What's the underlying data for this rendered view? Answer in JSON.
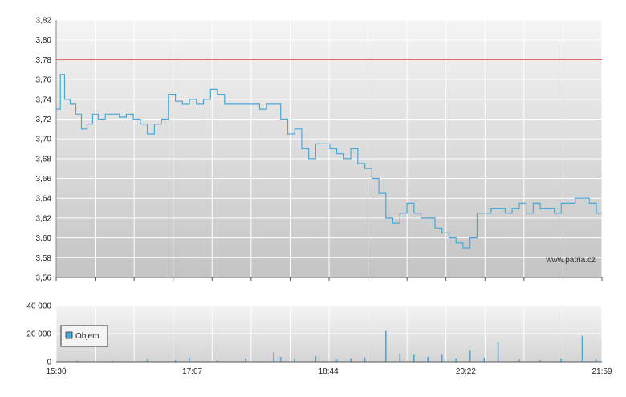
{
  "chart_data": [
    {
      "type": "line",
      "x_ticks": [
        "15:30",
        "17:07",
        "18:44",
        "20:22",
        "21:59"
      ],
      "y_ticks": [
        "3,82",
        "3,80",
        "3,78",
        "3,76",
        "3,74",
        "3,72",
        "3,70",
        "3,68",
        "3,66",
        "3,64",
        "3,62",
        "3,60",
        "3,58",
        "3,56"
      ],
      "ylim": [
        3.56,
        3.82
      ],
      "grid": true,
      "watermark": "www.patria.cz",
      "reference_line": {
        "value": 3.78,
        "color": "#e05050"
      },
      "line_color": "#4aa8d8",
      "series": [
        {
          "x": [
            "15:30",
            "15:33",
            "15:36",
            "15:40",
            "15:44",
            "15:48",
            "15:52",
            "15:56",
            "16:00",
            "16:05",
            "16:10",
            "16:15",
            "16:20",
            "16:25",
            "16:30",
            "16:35",
            "16:40",
            "16:45",
            "16:50",
            "16:55",
            "17:00",
            "17:05",
            "17:10",
            "17:15",
            "17:20",
            "17:25",
            "17:30",
            "17:35",
            "17:40",
            "17:45",
            "17:50",
            "17:55",
            "18:00",
            "18:05",
            "18:10",
            "18:15",
            "18:20",
            "18:25",
            "18:30",
            "18:35",
            "18:40",
            "18:45",
            "18:50",
            "18:55",
            "19:00",
            "19:05",
            "19:10",
            "19:15",
            "19:20",
            "19:25",
            "19:30",
            "19:35",
            "19:40",
            "19:45",
            "19:50",
            "19:55",
            "20:00",
            "20:05",
            "20:10",
            "20:15",
            "20:20",
            "20:25",
            "20:30",
            "20:35",
            "20:40",
            "20:45",
            "20:50",
            "20:55",
            "21:00",
            "21:05",
            "21:10",
            "21:15",
            "21:20",
            "21:25",
            "21:30",
            "21:35",
            "21:40",
            "21:45",
            "21:50",
            "21:55",
            "21:59"
          ],
          "y": [
            3.73,
            3.765,
            3.74,
            3.735,
            3.725,
            3.71,
            3.715,
            3.725,
            3.72,
            3.725,
            3.725,
            3.722,
            3.725,
            3.72,
            3.715,
            3.705,
            3.715,
            3.72,
            3.745,
            3.738,
            3.735,
            3.74,
            3.735,
            3.74,
            3.75,
            3.745,
            3.735,
            3.735,
            3.735,
            3.735,
            3.735,
            3.73,
            3.735,
            3.735,
            3.72,
            3.705,
            3.71,
            3.69,
            3.68,
            3.695,
            3.695,
            3.69,
            3.685,
            3.68,
            3.69,
            3.675,
            3.67,
            3.66,
            3.645,
            3.62,
            3.615,
            3.625,
            3.635,
            3.625,
            3.62,
            3.62,
            3.61,
            3.605,
            3.6,
            3.595,
            3.59,
            3.6,
            3.625,
            3.625,
            3.63,
            3.63,
            3.625,
            3.63,
            3.635,
            3.625,
            3.635,
            3.63,
            3.63,
            3.625,
            3.635,
            3.635,
            3.64,
            3.64,
            3.635,
            3.625,
            3.625
          ]
        }
      ]
    },
    {
      "type": "bar",
      "x_ticks": [
        "15:30",
        "17:07",
        "18:44",
        "20:22",
        "21:59"
      ],
      "y_ticks": [
        "40 000",
        "20 000",
        "0"
      ],
      "ylim": [
        0,
        40000
      ],
      "grid": true,
      "bar_color": "#4aa8d8",
      "legend": {
        "label": "Objem",
        "placement": "top-left"
      },
      "x": [
        "15:45",
        "16:10",
        "16:35",
        "16:55",
        "17:05",
        "17:25",
        "17:45",
        "18:05",
        "18:10",
        "18:20",
        "18:35",
        "18:50",
        "19:00",
        "19:10",
        "19:25",
        "19:35",
        "19:45",
        "19:55",
        "20:05",
        "20:15",
        "20:25",
        "20:35",
        "20:45",
        "21:00",
        "21:15",
        "21:30",
        "21:45",
        "21:55"
      ],
      "values": [
        800,
        600,
        1500,
        1200,
        3000,
        1000,
        2500,
        6500,
        3500,
        2000,
        4000,
        1500,
        2500,
        3000,
        22000,
        6000,
        5000,
        3500,
        5000,
        2500,
        8000,
        3000,
        14000,
        1500,
        1000,
        2000,
        18500,
        1500
      ]
    }
  ]
}
